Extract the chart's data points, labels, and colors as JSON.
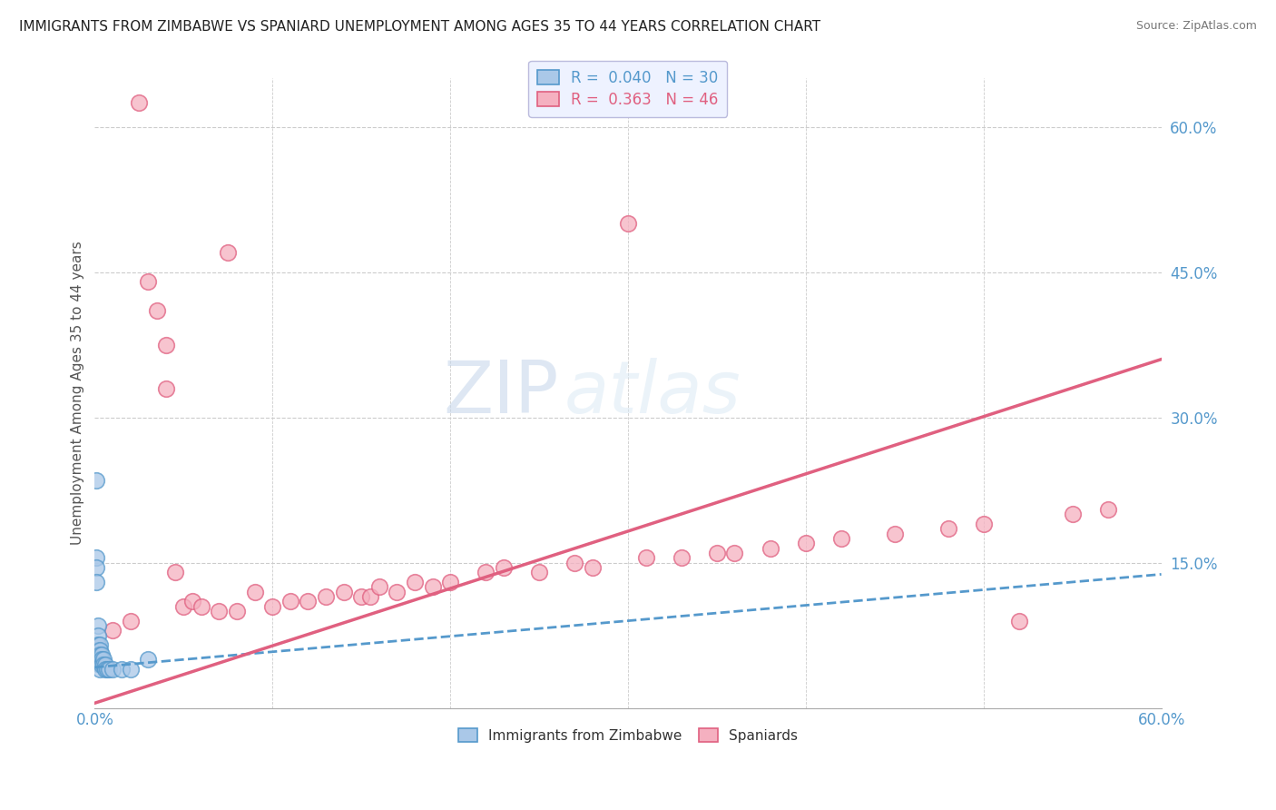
{
  "title": "IMMIGRANTS FROM ZIMBABWE VS SPANIARD UNEMPLOYMENT AMONG AGES 35 TO 44 YEARS CORRELATION CHART",
  "source": "Source: ZipAtlas.com",
  "ylabel": "Unemployment Among Ages 35 to 44 years",
  "legend_labels": [
    "Immigrants from Zimbabwe",
    "Spaniards"
  ],
  "r_zimbabwe": "0.040",
  "n_zimbabwe": "30",
  "r_spaniards": "0.363",
  "n_spaniards": "46",
  "color_zimbabwe": "#aac8e8",
  "color_spaniards": "#f5b0c0",
  "color_zimbabwe_line": "#5599cc",
  "color_spaniards_line": "#e06080",
  "xlim": [
    0.0,
    0.6
  ],
  "ylim": [
    0.0,
    0.65
  ],
  "watermark_zip": "ZIP",
  "watermark_atlas": "atlas",
  "background_color": "#ffffff",
  "zimbabwe_x": [
    0.001,
    0.001,
    0.001,
    0.001,
    0.001,
    0.002,
    0.002,
    0.002,
    0.002,
    0.002,
    0.002,
    0.003,
    0.003,
    0.003,
    0.003,
    0.003,
    0.003,
    0.004,
    0.004,
    0.004,
    0.005,
    0.005,
    0.006,
    0.006,
    0.007,
    0.008,
    0.01,
    0.015,
    0.02,
    0.03
  ],
  "zimbabwe_y": [
    0.235,
    0.155,
    0.145,
    0.13,
    0.055,
    0.085,
    0.075,
    0.065,
    0.06,
    0.055,
    0.05,
    0.065,
    0.06,
    0.055,
    0.05,
    0.045,
    0.04,
    0.055,
    0.05,
    0.045,
    0.05,
    0.045,
    0.045,
    0.04,
    0.04,
    0.04,
    0.04,
    0.04,
    0.04,
    0.05
  ],
  "spaniards_x": [
    0.01,
    0.02,
    0.025,
    0.03,
    0.035,
    0.04,
    0.04,
    0.045,
    0.05,
    0.055,
    0.06,
    0.07,
    0.075,
    0.08,
    0.09,
    0.1,
    0.11,
    0.12,
    0.13,
    0.14,
    0.15,
    0.155,
    0.16,
    0.17,
    0.18,
    0.19,
    0.2,
    0.22,
    0.23,
    0.25,
    0.27,
    0.28,
    0.3,
    0.31,
    0.33,
    0.35,
    0.36,
    0.38,
    0.4,
    0.42,
    0.45,
    0.48,
    0.5,
    0.52,
    0.55,
    0.57
  ],
  "spaniards_y": [
    0.08,
    0.09,
    0.625,
    0.44,
    0.41,
    0.375,
    0.33,
    0.14,
    0.105,
    0.11,
    0.105,
    0.1,
    0.47,
    0.1,
    0.12,
    0.105,
    0.11,
    0.11,
    0.115,
    0.12,
    0.115,
    0.115,
    0.125,
    0.12,
    0.13,
    0.125,
    0.13,
    0.14,
    0.145,
    0.14,
    0.15,
    0.145,
    0.5,
    0.155,
    0.155,
    0.16,
    0.16,
    0.165,
    0.17,
    0.175,
    0.18,
    0.185,
    0.19,
    0.09,
    0.2,
    0.205
  ]
}
